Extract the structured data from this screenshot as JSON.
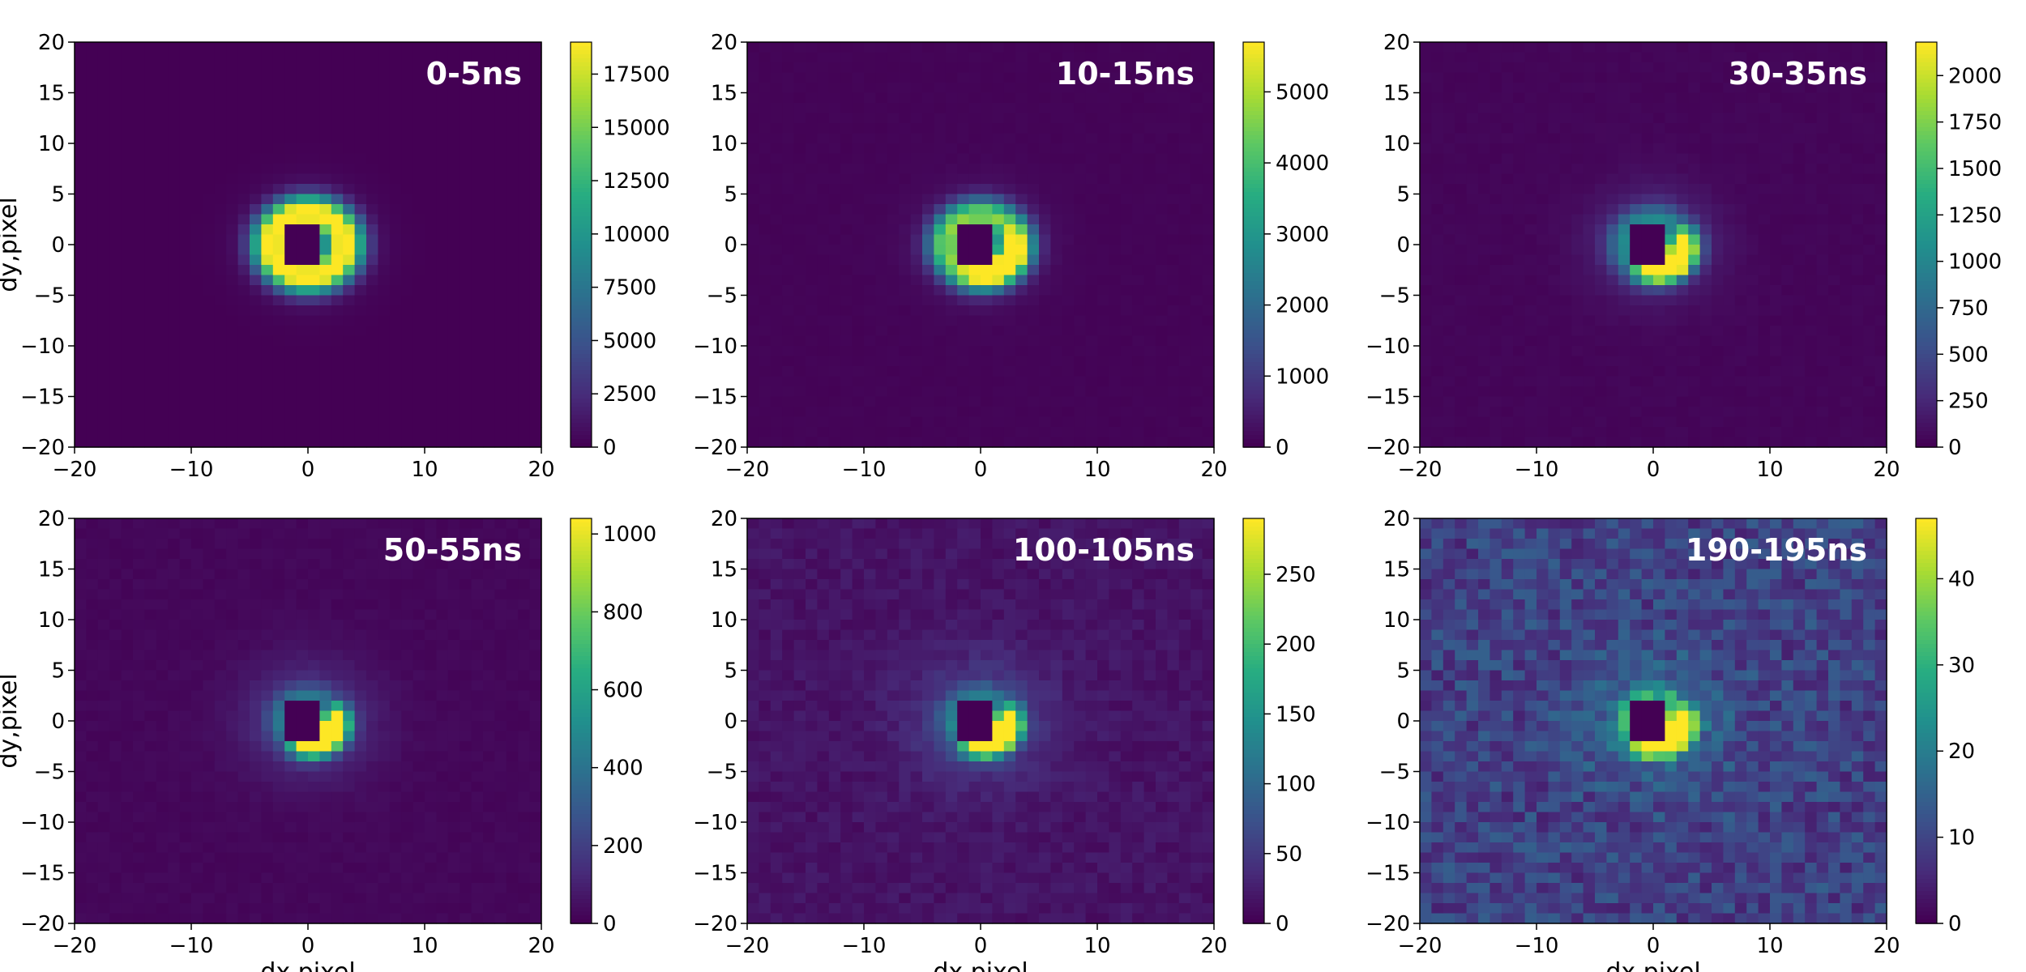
{
  "chart_data": {
    "type": "heatmap",
    "colormap": "viridis",
    "x_axis": {
      "label": "dx,pixel",
      "range": [
        -20,
        20
      ],
      "ticks": [
        "−20",
        "−10",
        "0",
        "10",
        "20"
      ],
      "tick_values": [
        -20,
        -10,
        0,
        10,
        20
      ]
    },
    "y_axis": {
      "label": "dy,pixel",
      "range": [
        -20,
        20
      ],
      "ticks": [
        "20",
        "15",
        "10",
        "5",
        "0",
        "−5",
        "−10",
        "−15",
        "−20"
      ],
      "tick_values": [
        20,
        15,
        10,
        5,
        0,
        -5,
        -10,
        -15,
        -20
      ]
    },
    "grid": false,
    "panels": [
      {
        "title": "0-5ns",
        "peak_radius": 3.2,
        "ring_width": 1.6,
        "halo_width": 4.5,
        "asymmetry": 0.0,
        "noise": 0.0,
        "colorbar": {
          "min": 0,
          "max": 19000,
          "ticks": [
            0,
            2500,
            5000,
            7500,
            10000,
            12500,
            15000,
            17500
          ]
        }
      },
      {
        "title": "10-15ns",
        "peak_radius": 3.0,
        "ring_width": 1.5,
        "halo_width": 4.5,
        "asymmetry": 0.35,
        "noise": 0.01,
        "colorbar": {
          "min": 0,
          "max": 5700,
          "ticks": [
            0,
            1000,
            2000,
            3000,
            4000,
            5000
          ]
        }
      },
      {
        "title": "30-35ns",
        "peak_radius": 2.6,
        "ring_width": 1.3,
        "halo_width": 5.0,
        "asymmetry": 0.8,
        "noise": 0.015,
        "colorbar": {
          "min": 0,
          "max": 2180,
          "ticks": [
            0,
            250,
            500,
            750,
            1000,
            1250,
            1500,
            1750,
            2000
          ]
        }
      },
      {
        "title": "50-55ns",
        "peak_radius": 2.4,
        "ring_width": 1.2,
        "halo_width": 5.5,
        "asymmetry": 0.9,
        "noise": 0.02,
        "colorbar": {
          "min": 0,
          "max": 1040,
          "ticks": [
            0,
            200,
            400,
            600,
            800,
            1000
          ]
        }
      },
      {
        "title": "100-105ns",
        "peak_radius": 2.4,
        "ring_width": 1.2,
        "halo_width": 6.0,
        "asymmetry": 0.9,
        "noise": 0.06,
        "colorbar": {
          "min": 0,
          "max": 290,
          "ticks": [
            0,
            50,
            100,
            150,
            200,
            250
          ]
        }
      },
      {
        "title": "190-195ns",
        "peak_radius": 2.4,
        "ring_width": 1.2,
        "halo_width": 6.0,
        "asymmetry": 0.85,
        "noise": 0.22,
        "colorbar": {
          "min": 0,
          "max": 47,
          "ticks": [
            0,
            10,
            20,
            30,
            40
          ]
        }
      }
    ]
  }
}
